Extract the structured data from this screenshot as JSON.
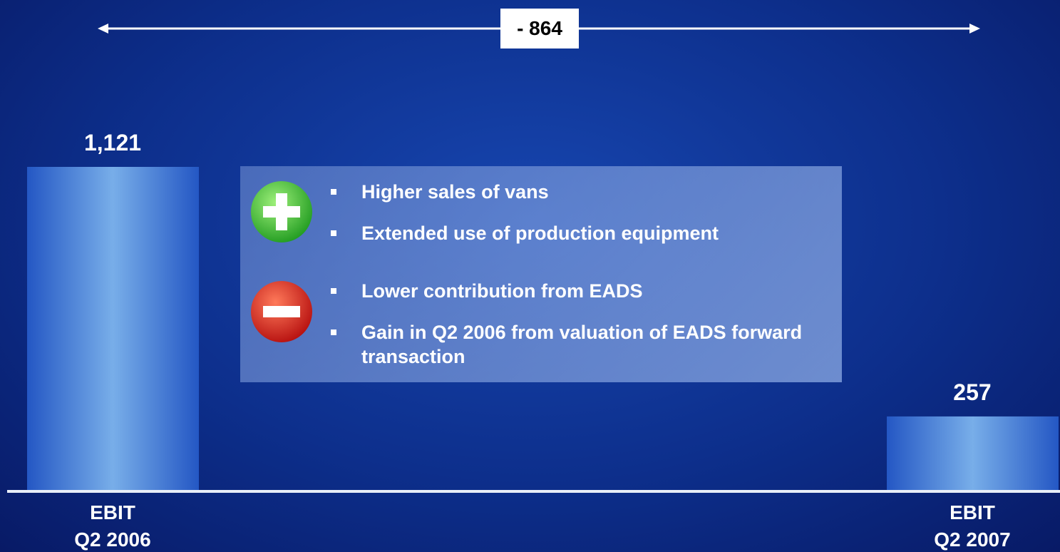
{
  "chart_data": {
    "type": "bar",
    "categories": [
      "EBIT\nQ2 2006",
      "EBIT\nQ2 2007"
    ],
    "values": [
      1121,
      257
    ],
    "value_labels": [
      "1,121",
      "257"
    ],
    "ylim": [
      0,
      1200
    ],
    "annotation": "- 864",
    "positive_factors": [
      "Higher sales of vans",
      "Extended use of production equipment"
    ],
    "negative_factors": [
      "Lower contribution from EADS",
      "Gain in Q2 2006 from valuation of EADS forward transaction"
    ]
  }
}
